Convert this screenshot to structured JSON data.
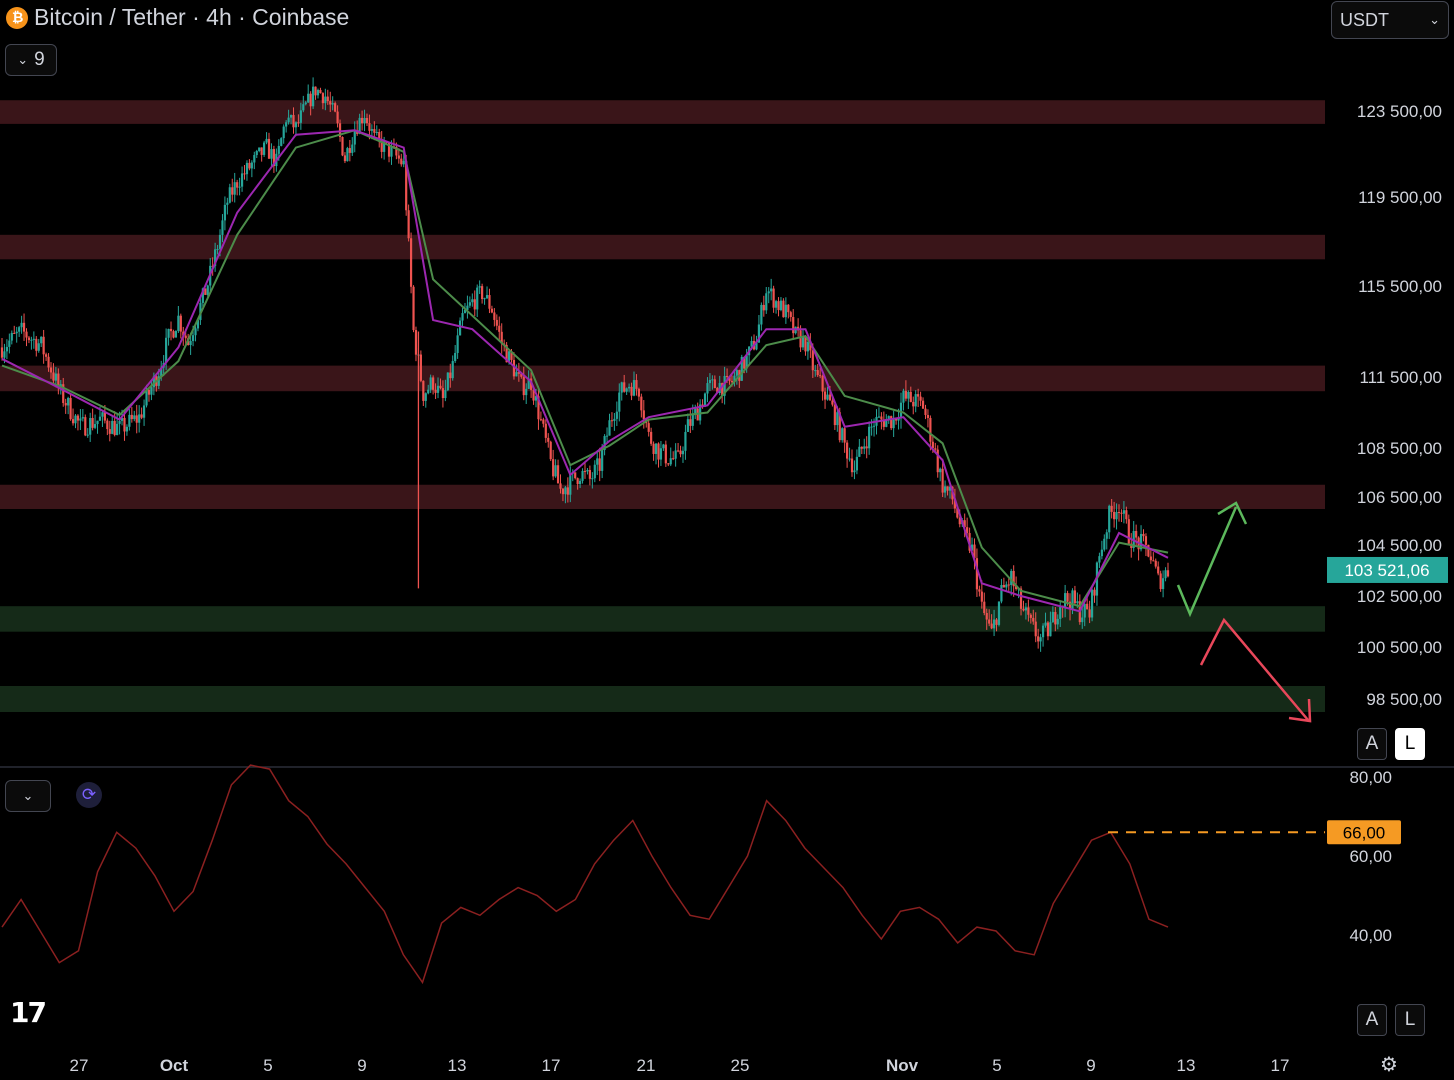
{
  "header": {
    "title": "Bitcoin / Tether · 4h · Coinbase",
    "coin_symbol": "₿",
    "indicator_count": "9",
    "currency": "USDT"
  },
  "colors": {
    "bull": "#26a69a",
    "bear": "#ef5350",
    "ema_fast": "#9c27b0",
    "ema_slow": "#4c8c4a",
    "resistance_zone": "#3a1519",
    "support_zone": "#152a18",
    "rsi_line": "#8b2020",
    "price_badge": "#26a69a",
    "rsi_level": "#f59a23"
  },
  "chart_data": {
    "type": "candlestick",
    "interval": "4h",
    "price_axis": {
      "ticks": [
        123500,
        119500,
        115500,
        111500,
        108500,
        106500,
        104500,
        102500,
        100500,
        98500
      ],
      "tick_labels": [
        "123 500,00",
        "119 500,00",
        "115 500,00",
        "111 500,00",
        "108 500,00",
        "106 500,00",
        "104 500,00",
        "102 500,00",
        "100 500,00",
        "98 500,00"
      ]
    },
    "current_price": 103521.06,
    "current_price_label": "103 521,06",
    "x_axis_labels": [
      "27",
      "Oct",
      "5",
      "9",
      "13",
      "17",
      "21",
      "25",
      "Nov",
      "5",
      "9",
      "13",
      "17"
    ],
    "close_path": [
      [
        0,
        112800
      ],
      [
        2,
        113500
      ],
      [
        4,
        112900
      ],
      [
        6,
        110800
      ],
      [
        8,
        109400
      ],
      [
        10,
        109700
      ],
      [
        12,
        109300
      ],
      [
        14,
        109800
      ],
      [
        16,
        111800
      ],
      [
        17,
        113200
      ],
      [
        18,
        114100
      ],
      [
        19,
        113000
      ],
      [
        21,
        115600
      ],
      [
        22,
        117300
      ],
      [
        23,
        119300
      ],
      [
        24,
        120200
      ],
      [
        26,
        121300
      ],
      [
        27,
        121800
      ],
      [
        28,
        121100
      ],
      [
        29,
        123200
      ],
      [
        30,
        122700
      ],
      [
        31,
        123700
      ],
      [
        32,
        124500
      ],
      [
        33,
        124200
      ],
      [
        34,
        123200
      ],
      [
        35,
        121300
      ],
      [
        36,
        122700
      ],
      [
        37,
        123400
      ],
      [
        38,
        122200
      ],
      [
        39,
        121800
      ],
      [
        40,
        121500
      ],
      [
        41,
        121000
      ],
      [
        42,
        113500
      ],
      [
        43,
        110800
      ],
      [
        44,
        111300
      ],
      [
        45,
        110500
      ],
      [
        46,
        112000
      ],
      [
        47,
        114100
      ],
      [
        48,
        114800
      ],
      [
        49,
        115200
      ],
      [
        50,
        114500
      ],
      [
        51,
        113000
      ],
      [
        52,
        112100
      ],
      [
        53,
        111100
      ],
      [
        54,
        111300
      ],
      [
        55,
        109600
      ],
      [
        56,
        107900
      ],
      [
        57,
        106800
      ],
      [
        58,
        107100
      ],
      [
        59,
        107500
      ],
      [
        60,
        107200
      ],
      [
        61,
        107800
      ],
      [
        62,
        109500
      ],
      [
        63,
        110800
      ],
      [
        64,
        111200
      ],
      [
        65,
        111000
      ],
      [
        66,
        109000
      ],
      [
        67,
        108400
      ],
      [
        68,
        108100
      ],
      [
        69,
        108000
      ],
      [
        70,
        109400
      ],
      [
        71,
        110100
      ],
      [
        72,
        111000
      ],
      [
        73,
        111200
      ],
      [
        74,
        111100
      ],
      [
        75,
        111600
      ],
      [
        76,
        112300
      ],
      [
        77,
        113200
      ],
      [
        78,
        115400
      ],
      [
        79,
        114800
      ],
      [
        80,
        114300
      ],
      [
        81,
        113300
      ],
      [
        82,
        113000
      ],
      [
        83,
        111600
      ],
      [
        84,
        110800
      ],
      [
        85,
        109900
      ],
      [
        86,
        108600
      ],
      [
        87,
        107700
      ],
      [
        88,
        108700
      ],
      [
        89,
        109600
      ],
      [
        90,
        109700
      ],
      [
        91,
        109700
      ],
      [
        92,
        110600
      ],
      [
        93,
        110500
      ],
      [
        94,
        110300
      ],
      [
        95,
        108700
      ],
      [
        96,
        107000
      ],
      [
        97,
        106400
      ],
      [
        98,
        105100
      ],
      [
        99,
        104300
      ],
      [
        100,
        102000
      ],
      [
        101,
        101000
      ],
      [
        102,
        102600
      ],
      [
        103,
        103200
      ],
      [
        104,
        102100
      ],
      [
        105,
        101300
      ],
      [
        106,
        100800
      ],
      [
        107,
        101300
      ],
      [
        108,
        102300
      ],
      [
        109,
        102400
      ],
      [
        110,
        101900
      ],
      [
        111,
        101800
      ],
      [
        112,
        104100
      ],
      [
        113,
        105700
      ],
      [
        114,
        106200
      ],
      [
        115,
        104900
      ],
      [
        116,
        104600
      ],
      [
        117,
        104300
      ],
      [
        118,
        103100
      ],
      [
        119,
        103500
      ]
    ],
    "ema_fast_path": [
      [
        0,
        112300
      ],
      [
        6,
        111000
      ],
      [
        12,
        109700
      ],
      [
        18,
        112800
      ],
      [
        24,
        118800
      ],
      [
        30,
        122400
      ],
      [
        36,
        122600
      ],
      [
        41,
        121800
      ],
      [
        44,
        114000
      ],
      [
        48,
        113600
      ],
      [
        54,
        111300
      ],
      [
        58,
        107400
      ],
      [
        62,
        108800
      ],
      [
        66,
        109800
      ],
      [
        72,
        110300
      ],
      [
        78,
        113600
      ],
      [
        82,
        113600
      ],
      [
        86,
        109400
      ],
      [
        92,
        109800
      ],
      [
        96,
        108000
      ],
      [
        100,
        103000
      ],
      [
        104,
        102500
      ],
      [
        110,
        101900
      ],
      [
        114,
        105000
      ],
      [
        119,
        104000
      ]
    ],
    "ema_slow_path": [
      [
        0,
        112000
      ],
      [
        6,
        111100
      ],
      [
        12,
        109900
      ],
      [
        18,
        112200
      ],
      [
        24,
        117800
      ],
      [
        30,
        121800
      ],
      [
        36,
        122600
      ],
      [
        41,
        121600
      ],
      [
        44,
        115800
      ],
      [
        48,
        114200
      ],
      [
        54,
        111800
      ],
      [
        58,
        107800
      ],
      [
        62,
        108600
      ],
      [
        66,
        109700
      ],
      [
        72,
        110000
      ],
      [
        78,
        112900
      ],
      [
        82,
        113300
      ],
      [
        86,
        110700
      ],
      [
        92,
        110000
      ],
      [
        96,
        108700
      ],
      [
        100,
        104400
      ],
      [
        104,
        102700
      ],
      [
        110,
        102100
      ],
      [
        114,
        104600
      ],
      [
        119,
        104200
      ]
    ],
    "zones": [
      {
        "kind": "resistance",
        "from": 122900,
        "to": 124000
      },
      {
        "kind": "resistance",
        "from": 116700,
        "to": 117800
      },
      {
        "kind": "resistance",
        "from": 110900,
        "to": 112000
      },
      {
        "kind": "resistance",
        "from": 106000,
        "to": 107000
      },
      {
        "kind": "support",
        "from": 101100,
        "to": 102100
      },
      {
        "kind": "support",
        "from": 98000,
        "to": 99000
      }
    ],
    "rsi": {
      "ticks": [
        80,
        60,
        40
      ],
      "tick_labels": [
        "80,00",
        "60,00",
        "40,00"
      ],
      "level": 66,
      "level_label": "66,00",
      "ylim": [
        20,
        85
      ],
      "series": [
        42,
        49,
        41,
        33,
        36,
        56,
        66,
        62,
        55,
        46,
        51,
        64,
        78,
        83,
        82,
        74,
        70,
        63,
        58,
        52,
        46,
        35,
        28,
        43,
        47,
        45,
        49,
        52,
        50,
        46,
        49,
        58,
        64,
        69,
        60,
        52,
        45,
        44,
        52,
        60,
        74,
        69,
        62,
        57,
        52,
        45,
        39,
        46,
        47,
        44,
        38,
        42,
        41,
        36,
        35,
        48,
        56,
        64,
        66,
        58,
        44,
        42
      ]
    }
  },
  "buttons": {
    "auto_label": "A",
    "log_label": "L"
  },
  "branding": {
    "logo_text": "17"
  }
}
